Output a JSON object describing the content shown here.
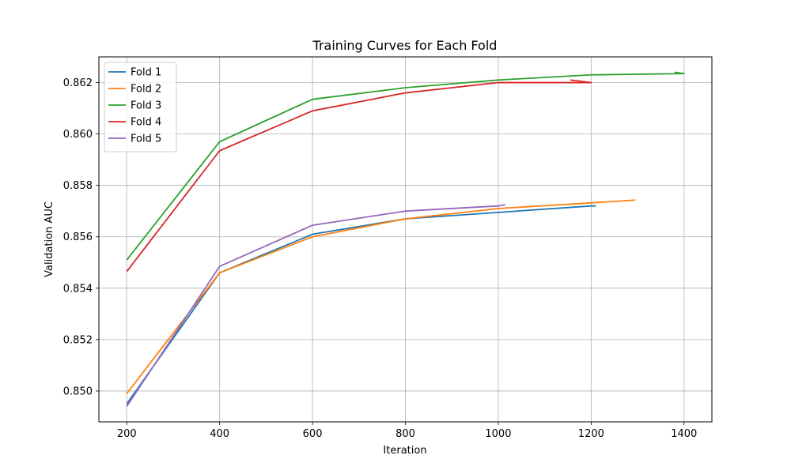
{
  "chart_data": {
    "type": "line",
    "title": "Training Curves for Each Fold",
    "xlabel": "Iteration",
    "ylabel": "Validation AUC",
    "xlim": [
      140,
      1460
    ],
    "ylim": [
      0.8488,
      0.863
    ],
    "xticks": [
      200,
      400,
      600,
      800,
      1000,
      1200,
      1400
    ],
    "yticks": [
      0.85,
      0.852,
      0.854,
      0.856,
      0.858,
      0.86,
      0.862
    ],
    "grid": true,
    "legend_position": "top-left",
    "series": [
      {
        "name": "Fold 1",
        "color": "#1f77b4",
        "x": [
          200,
          400,
          600,
          800,
          1000,
          1200,
          1210
        ],
        "y": [
          0.8495,
          0.8546,
          0.8561,
          0.8567,
          0.85695,
          0.8572,
          0.8572
        ]
      },
      {
        "name": "Fold 2",
        "color": "#ff7f0e",
        "x": [
          200,
          400,
          600,
          800,
          1000,
          1200,
          1295
        ],
        "y": [
          0.8499,
          0.8546,
          0.856,
          0.8567,
          0.8571,
          0.85732,
          0.85743
        ]
      },
      {
        "name": "Fold 3",
        "color": "#2ca02c",
        "x": [
          200,
          400,
          600,
          800,
          1000,
          1200,
          1400,
          1380
        ],
        "y": [
          0.8551,
          0.8597,
          0.86135,
          0.8618,
          0.8621,
          0.8623,
          0.86235,
          0.8624
        ]
      },
      {
        "name": "Fold 4",
        "color": "#d62728",
        "x": [
          200,
          400,
          600,
          800,
          1000,
          1200,
          1155
        ],
        "y": [
          0.85465,
          0.85935,
          0.8609,
          0.8616,
          0.862,
          0.862,
          0.8621
        ]
      },
      {
        "name": "Fold 5",
        "color": "#9467bd",
        "x": [
          200,
          400,
          600,
          800,
          1000,
          1015
        ],
        "y": [
          0.8494,
          0.85485,
          0.85645,
          0.857,
          0.8572,
          0.85725
        ]
      }
    ]
  }
}
